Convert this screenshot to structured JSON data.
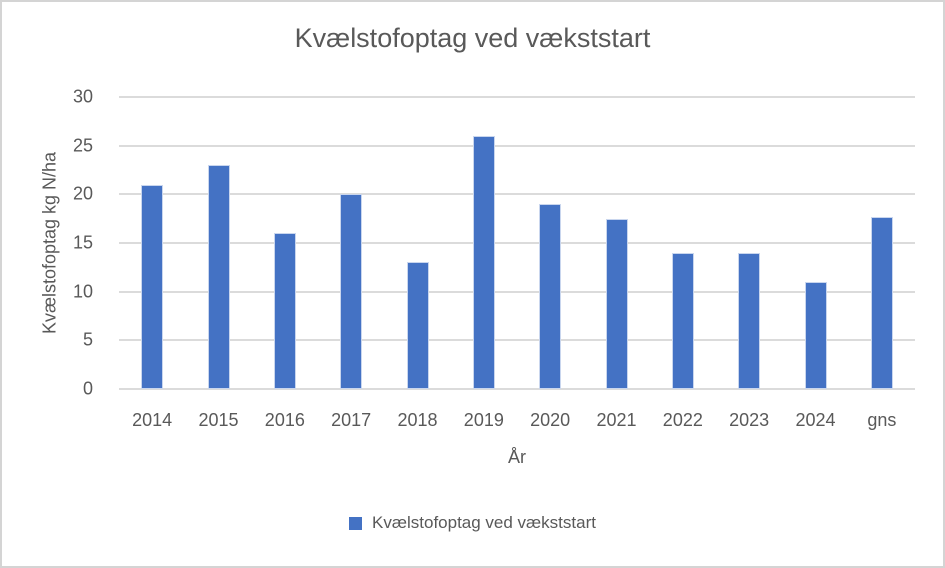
{
  "chart_data": {
    "type": "bar",
    "title": "Kvælstofoptag ved vækststart",
    "categories": [
      "2014",
      "2015",
      "2016",
      "2017",
      "2018",
      "2019",
      "2020",
      "2021",
      "2022",
      "2023",
      "2024",
      "gns"
    ],
    "series": [
      {
        "name": "Kvælstofoptag ved vækststart",
        "values": [
          21,
          23,
          16,
          20,
          13,
          26,
          19,
          17.5,
          14,
          14,
          11,
          17.7
        ]
      }
    ],
    "xlabel": "År",
    "ylabel": "Kvælstofoptag kg N/ha",
    "ylim": [
      0,
      30
    ],
    "yticks": [
      0,
      5,
      10,
      15,
      20,
      25,
      30
    ],
    "grid": true,
    "legend": {
      "position": "bottom",
      "entries": [
        "Kvælstofoptag ved vækststart"
      ]
    },
    "colors": {
      "bar": "#4472C4",
      "grid": "#dbdbdb",
      "text": "#595959",
      "frame": "#d4d4d4"
    }
  }
}
